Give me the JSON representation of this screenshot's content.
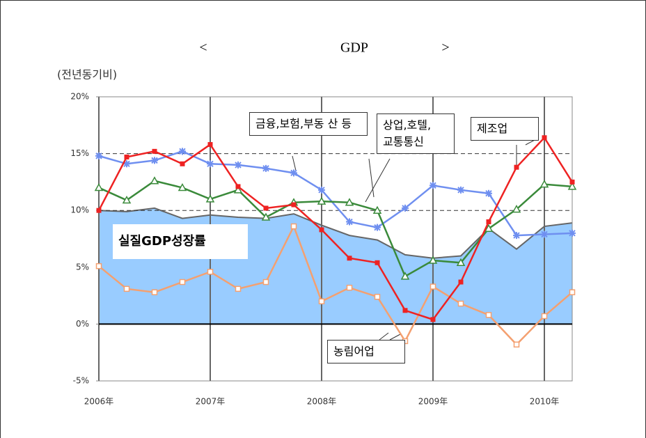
{
  "chart_data": {
    "type": "line",
    "title": [
      "<",
      "GDP",
      ">"
    ],
    "y_label": "(전년동기비)",
    "x": [
      2006,
      2006.25,
      2006.5,
      2006.75,
      2007,
      2007.25,
      2007.5,
      2007.75,
      2008,
      2008.25,
      2008.5,
      2008.75,
      2009,
      2009.25,
      2009.5,
      2009.75,
      2010,
      2010.25
    ],
    "xlim": [
      2006,
      2010.25
    ],
    "xticks": [
      {
        "value": 2006,
        "label": "2006年"
      },
      {
        "value": 2007,
        "label": "2007年"
      },
      {
        "value": 2008,
        "label": "2008年"
      },
      {
        "value": 2009,
        "label": "2009年"
      },
      {
        "value": 2010,
        "label": "2010年"
      }
    ],
    "ylim": [
      -5,
      20
    ],
    "yticks": [
      {
        "value": -5,
        "label": "-5%"
      },
      {
        "value": 0,
        "label": "0%"
      },
      {
        "value": 5,
        "label": "5%"
      },
      {
        "value": 10,
        "label": "10%"
      },
      {
        "value": 15,
        "label": "15%"
      },
      {
        "value": 20,
        "label": "20%"
      }
    ],
    "reference_lines": [
      10,
      15
    ],
    "area": {
      "name": "실질GDP성장률",
      "color": "#99ccff",
      "line_color": "#666666",
      "values": [
        10.0,
        9.9,
        10.2,
        9.3,
        9.6,
        9.4,
        9.3,
        9.7,
        8.7,
        7.8,
        7.4,
        6.1,
        5.8,
        6.0,
        8.4,
        6.6,
        8.6,
        8.9
      ]
    },
    "series": [
      {
        "name": "금융,보험,부동 산 등",
        "color": "#6f8ff0",
        "marker": "star",
        "values": [
          14.8,
          14.1,
          14.4,
          15.2,
          14.1,
          14.0,
          13.7,
          13.3,
          11.8,
          9.0,
          8.5,
          10.2,
          12.2,
          11.8,
          11.5,
          7.8,
          7.9,
          8.0
        ]
      },
      {
        "name": "상업,호텔, 교통통신",
        "color": "#3a8a3a",
        "marker": "triangle",
        "values": [
          12.0,
          10.9,
          12.6,
          12.0,
          11.0,
          11.8,
          9.4,
          10.7,
          10.8,
          10.7,
          10.0,
          4.2,
          5.6,
          5.4,
          8.4,
          10.1,
          12.3,
          12.1
        ]
      },
      {
        "name": "농림어업",
        "color": "#f4a070",
        "marker": "open-square",
        "values": [
          5.1,
          3.1,
          2.8,
          3.7,
          4.6,
          3.1,
          3.7,
          8.6,
          2.0,
          3.2,
          2.4,
          -1.5,
          3.3,
          1.8,
          0.8,
          -1.8,
          0.7,
          2.8
        ]
      },
      {
        "name": "제조업",
        "color": "#ee2222",
        "marker": "square",
        "values": [
          10.0,
          14.7,
          15.2,
          14.1,
          15.8,
          12.1,
          10.2,
          10.5,
          8.3,
          5.8,
          5.4,
          1.2,
          0.4,
          3.7,
          9.0,
          13.8,
          16.4,
          12.5
        ]
      }
    ]
  }
}
